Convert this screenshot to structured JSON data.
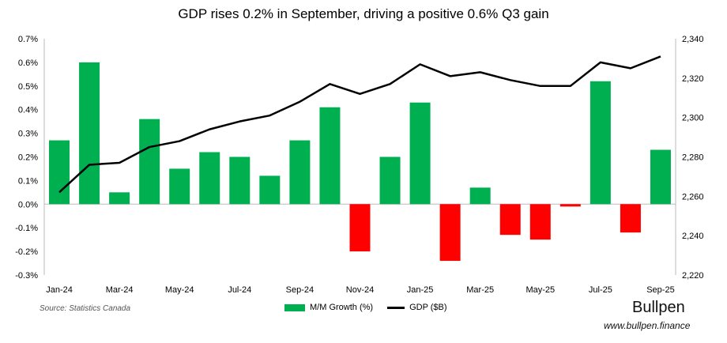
{
  "chart_data": {
    "type": "bar+line",
    "title": "GDP rises 0.2% in September, driving a positive 0.6% Q3 gain",
    "categories": [
      "Jan-24",
      "Feb-24",
      "Mar-24",
      "Apr-24",
      "May-24",
      "Jun-24",
      "Jul-24",
      "Aug-24",
      "Sep-24",
      "Oct-24",
      "Nov-24",
      "Dec-24",
      "Jan-25",
      "Feb-25",
      "Mar-25",
      "Apr-25",
      "May-25",
      "Jun-25",
      "Jul-25",
      "Aug-25",
      "Sep-25"
    ],
    "x_tick_labels": [
      "Jan-24",
      "Mar-24",
      "May-24",
      "Jul-24",
      "Sep-24",
      "Nov-24",
      "Jan-25",
      "Mar-25",
      "May-25",
      "Jul-25",
      "Sep-25"
    ],
    "series": [
      {
        "name": "M/M Growth (%)",
        "type": "bar",
        "axis": "left",
        "values": [
          0.27,
          0.6,
          0.05,
          0.36,
          0.15,
          0.22,
          0.2,
          0.12,
          0.27,
          0.41,
          -0.2,
          0.2,
          0.43,
          -0.24,
          0.07,
          -0.13,
          -0.15,
          -0.01,
          0.52,
          -0.12,
          0.23
        ],
        "color_positive": "#00b050",
        "color_negative": "#ff0000"
      },
      {
        "name": "GDP ($B)",
        "type": "line",
        "axis": "right",
        "values": [
          2262,
          2276,
          2277,
          2285,
          2288,
          2294,
          2298,
          2301,
          2308,
          2317,
          2312,
          2317,
          2327,
          2321,
          2323,
          2319,
          2316,
          2316,
          2328,
          2325,
          2331
        ],
        "color": "#000000"
      }
    ],
    "left_axis": {
      "ylim": [
        -0.3,
        0.7
      ],
      "ticks": [
        "-0.3%",
        "-0.2%",
        "-0.1%",
        "0.0%",
        "0.1%",
        "0.2%",
        "0.3%",
        "0.4%",
        "0.5%",
        "0.6%",
        "0.7%"
      ]
    },
    "right_axis": {
      "ylim": [
        2220,
        2340
      ],
      "ticks": [
        "2,220",
        "2,240",
        "2,260",
        "2,280",
        "2,300",
        "2,320",
        "2,340"
      ]
    },
    "grid": false,
    "legend": "bottom"
  },
  "footer": {
    "source": "Source: Statistics Canada",
    "logo": "Bullpen",
    "url": "www.bullpen.finance"
  }
}
